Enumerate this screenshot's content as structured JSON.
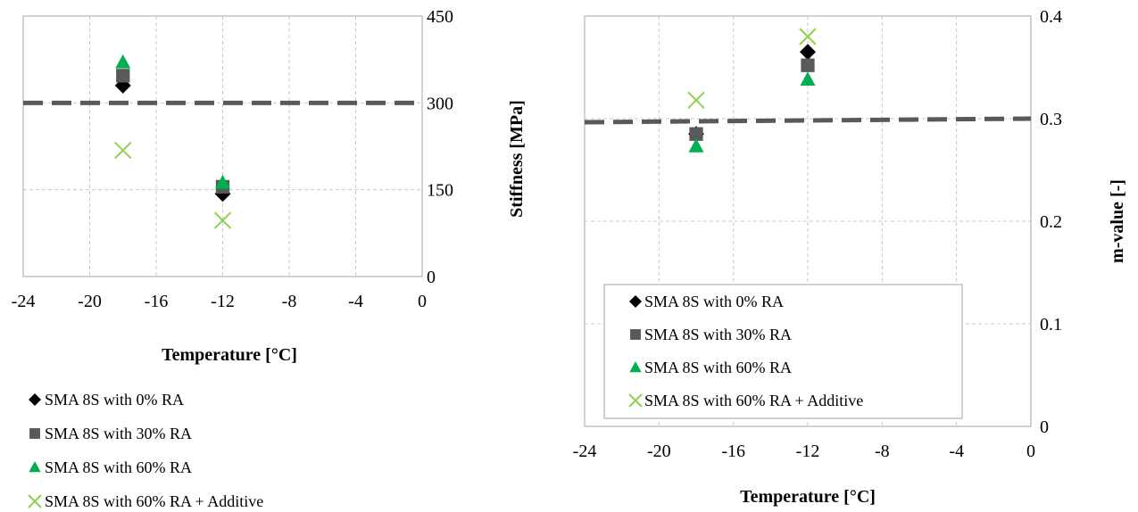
{
  "chart_data": [
    {
      "type": "scatter",
      "title": "",
      "xlabel": "Temperature [°C]",
      "ylabel": "Stiffness [MPa]",
      "xlim": [
        -24,
        0
      ],
      "ylim": [
        0,
        450
      ],
      "x_ticks": [
        "-24",
        "-20",
        "-16",
        "-12",
        "-8",
        "-4",
        "0"
      ],
      "y_ticks": [
        "0",
        "150",
        "300",
        "450"
      ],
      "y_axis_side": "right",
      "grid": true,
      "threshold": {
        "value": 300,
        "style": "dashed",
        "color": "#595959"
      },
      "legend_position": "below",
      "series": [
        {
          "name": "SMA 8S with 0% RA",
          "marker": "diamond",
          "color": "#000000",
          "x": [
            -18,
            -12
          ],
          "y": [
            330,
            143
          ]
        },
        {
          "name": "SMA 8S with 30% RA",
          "marker": "square",
          "color": "#595959",
          "x": [
            -18,
            -12
          ],
          "y": [
            347,
            155
          ]
        },
        {
          "name": "SMA 8S with 60% RA",
          "marker": "triangle",
          "color": "#00b050",
          "x": [
            -18,
            -12
          ],
          "y": [
            370,
            162
          ]
        },
        {
          "name": "SMA 8S with 60% RA + Additive",
          "marker": "x",
          "color": "#92d050",
          "x": [
            -18,
            -12
          ],
          "y": [
            218,
            97
          ]
        }
      ]
    },
    {
      "type": "scatter",
      "title": "",
      "xlabel": "Temperature [°C]",
      "ylabel": "m-value [-]",
      "xlim": [
        -24,
        0
      ],
      "ylim": [
        0,
        0.4
      ],
      "x_ticks": [
        "-24",
        "-20",
        "-16",
        "-12",
        "-8",
        "-4",
        "0"
      ],
      "y_ticks": [
        "0",
        "0.1",
        "0.2",
        "0.3",
        "0.4"
      ],
      "y_axis_side": "right",
      "grid": true,
      "threshold": {
        "value": 0.3,
        "style": "dashed",
        "color": "#595959"
      },
      "legend_position": "inside-bottom-left",
      "series": [
        {
          "name": "SMA 8S with 0% RA",
          "marker": "diamond",
          "color": "#000000",
          "x": [
            -18,
            -12
          ],
          "y": [
            0.285,
            0.365
          ]
        },
        {
          "name": "SMA 8S with 30% RA",
          "marker": "square",
          "color": "#595959",
          "x": [
            -18,
            -12
          ],
          "y": [
            0.285,
            0.352
          ]
        },
        {
          "name": "SMA 8S with 60% RA",
          "marker": "triangle",
          "color": "#00b050",
          "x": [
            -18,
            -12
          ],
          "y": [
            0.273,
            0.338
          ]
        },
        {
          "name": "SMA 8S with 60% RA + Additive",
          "marker": "x",
          "color": "#92d050",
          "x": [
            -18,
            -12
          ],
          "y": [
            0.318,
            0.38
          ]
        }
      ]
    }
  ]
}
